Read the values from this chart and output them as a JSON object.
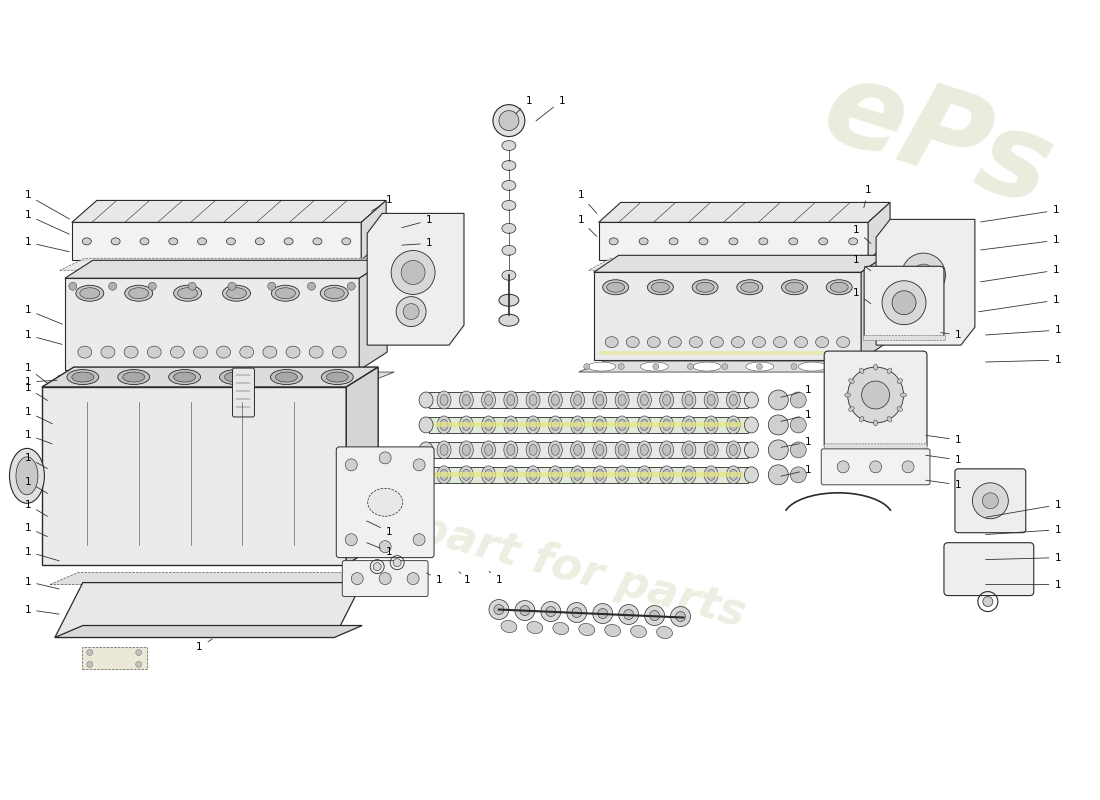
{
  "background_color": "#ffffff",
  "line_color": "#2a2a2a",
  "label_color": "#000000",
  "wm1_text": "ePs",
  "wm2_text": "a part for parts",
  "wm_color": "#e8e8d8",
  "part_label": "1",
  "fig_width": 11.0,
  "fig_height": 8.0,
  "dpi": 100,
  "highlight_yellow": "#e8e880",
  "part_fill": "#f0f0f0",
  "gasket_fill": "#e0e0e0",
  "dark_fill": "#d0d0d0"
}
